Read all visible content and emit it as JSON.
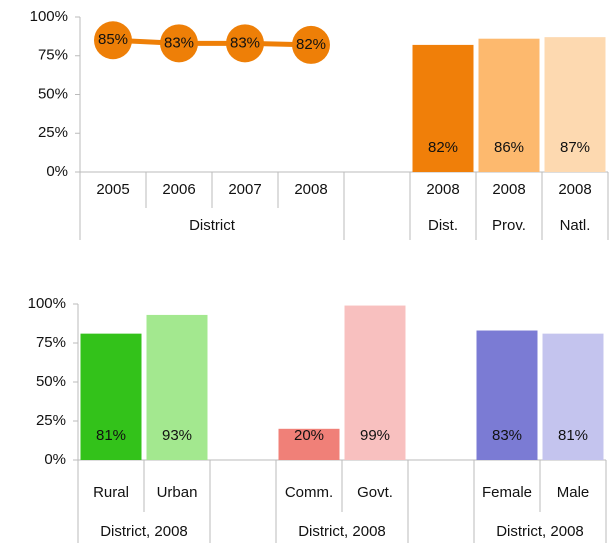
{
  "chart_data": [
    {
      "type": "combo",
      "categories": [
        "2005",
        "2006",
        "2007",
        "2008",
        null,
        "2008",
        "2008",
        "2008"
      ],
      "group_labels": [
        "District",
        "District",
        "District",
        "District",
        null,
        "Dist.",
        "Prov.",
        "Natl."
      ],
      "ylim": [
        0,
        100
      ],
      "yticks": [
        {
          "value": 0,
          "label": "0%"
        },
        {
          "value": 25,
          "label": "25%"
        },
        {
          "value": 50,
          "label": "50%"
        },
        {
          "value": 75,
          "label": "75%"
        },
        {
          "value": 100,
          "label": "100%"
        }
      ],
      "series": [
        {
          "type": "line",
          "color": "#ee7f07",
          "values": [
            85,
            83,
            83,
            82,
            null,
            null,
            null,
            null
          ],
          "value_labels": [
            "85%",
            "83%",
            "83%",
            "82%",
            null,
            null,
            null,
            null
          ]
        },
        {
          "type": "bar",
          "colors": [
            null,
            null,
            null,
            null,
            null,
            "#f07f09",
            "#fdb96e",
            "#fdd9b0"
          ],
          "values": [
            null,
            null,
            null,
            null,
            null,
            82,
            86,
            87
          ],
          "value_labels": [
            null,
            null,
            null,
            null,
            null,
            "82%",
            "86%",
            "87%"
          ]
        }
      ]
    },
    {
      "type": "bar",
      "categories": [
        "Rural",
        "Urban",
        null,
        "Comm.",
        "Govt.",
        null,
        "Female",
        "Male"
      ],
      "group_labels": [
        "District, 2008",
        "District, 2008",
        null,
        "District, 2008",
        "District, 2008",
        null,
        "District, 2008",
        "District, 2008"
      ],
      "ylim": [
        0,
        100
      ],
      "yticks": [
        {
          "value": 0,
          "label": "0%"
        },
        {
          "value": 25,
          "label": "25%"
        },
        {
          "value": 50,
          "label": "50%"
        },
        {
          "value": 75,
          "label": "75%"
        },
        {
          "value": 100,
          "label": "100%"
        }
      ],
      "series": [
        {
          "type": "bar",
          "colors": [
            "#33c21a",
            "#a3e88f",
            null,
            "#f08078",
            "#f8c0bf",
            null,
            "#7b7bd4",
            "#c4c4ee"
          ],
          "values": [
            81,
            93,
            null,
            20,
            99,
            null,
            83,
            81
          ],
          "value_labels": [
            "81%",
            "93%",
            null,
            "20%",
            "99%",
            null,
            "83%",
            "81%"
          ]
        }
      ]
    }
  ]
}
